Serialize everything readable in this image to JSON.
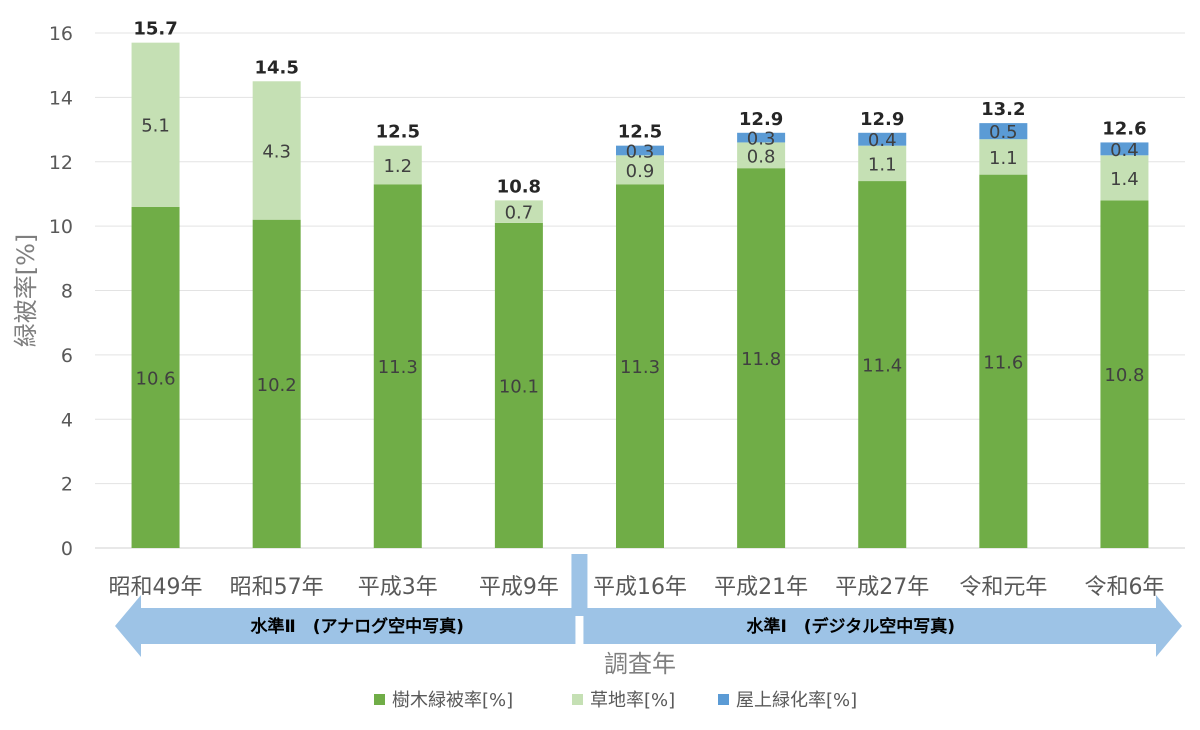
{
  "chart_data": {
    "type": "bar",
    "stacked": true,
    "categories": [
      "昭和49年",
      "昭和57年",
      "平成3年",
      "平成9年",
      "平成16年",
      "平成21年",
      "平成27年",
      "令和元年",
      "令和6年"
    ],
    "series": [
      {
        "name": "樹木緑被率[%]",
        "color": "#70ad47",
        "values": [
          10.6,
          10.2,
          11.3,
          10.1,
          11.3,
          11.8,
          11.4,
          11.6,
          10.8
        ]
      },
      {
        "name": "草地率[%]",
        "color": "#c5e0b4",
        "values": [
          5.1,
          4.3,
          1.2,
          0.7,
          0.9,
          0.8,
          1.1,
          1.1,
          1.4
        ]
      },
      {
        "name": "屋上緑化率[%]",
        "color": "#5b9bd5",
        "values": [
          null,
          null,
          null,
          null,
          0.3,
          0.3,
          0.4,
          0.5,
          0.4
        ]
      }
    ],
    "totals": [
      15.7,
      14.5,
      12.5,
      10.8,
      12.5,
      12.9,
      12.9,
      13.2,
      12.6
    ],
    "ylabel": "緑被率[%]",
    "xlabel": "調査年",
    "ylim": [
      0,
      16
    ],
    "yticks": [
      0,
      2,
      4,
      6,
      8,
      10,
      12,
      14,
      16
    ],
    "grid": true,
    "legend_position": "bottom",
    "bands": [
      {
        "label": "水準Ⅱ　(アナログ空中写真)",
        "direction": "left",
        "from_category": 0,
        "to_category": 3
      },
      {
        "label": "水準Ⅰ　(デジタル空中写真)",
        "direction": "right",
        "from_category": 4,
        "to_category": 8
      }
    ],
    "band_color": "#9dc3e6"
  }
}
